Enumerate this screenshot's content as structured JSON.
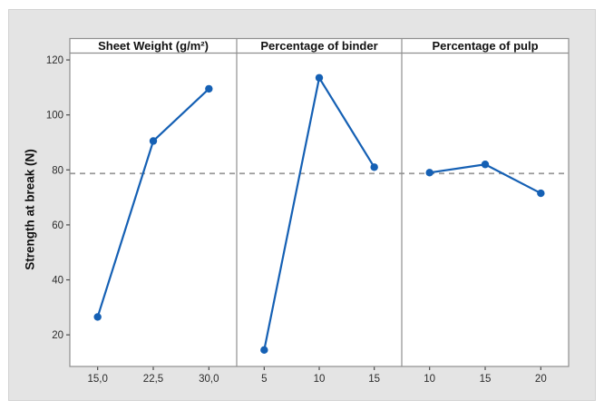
{
  "figure": {
    "background": "#e4e4e4",
    "page_background": "#ffffff"
  },
  "chart_data": {
    "type": "line",
    "chart_kind": "main-effects-plot",
    "title": "",
    "ylabel": "Strength at break (N)",
    "yticks": [
      20,
      40,
      60,
      80,
      100,
      120
    ],
    "ylim": [
      8.5,
      122.5
    ],
    "grid": false,
    "legend": false,
    "reference_line": 78.7,
    "panels": [
      {
        "title": "Sheet Weight (g/m²)",
        "categories": [
          "15,0",
          "22,5",
          "30,0"
        ],
        "values": [
          26.5,
          90.5,
          109.5
        ]
      },
      {
        "title": "Percentage of binder",
        "categories": [
          "5",
          "10",
          "15"
        ],
        "values": [
          14.5,
          113.5,
          81
        ]
      },
      {
        "title": "Percentage of pulp",
        "categories": [
          "10",
          "15",
          "20"
        ],
        "values": [
          79,
          82,
          71.5
        ]
      }
    ],
    "colors": {
      "line": "#1560b4",
      "marker": "#1560b4",
      "reference": "#9a9a9a",
      "frame": "#8f8f8f",
      "tick": "#4a4a4a",
      "text": "#2b2b2b",
      "panel_fill": "#ffffff"
    }
  }
}
